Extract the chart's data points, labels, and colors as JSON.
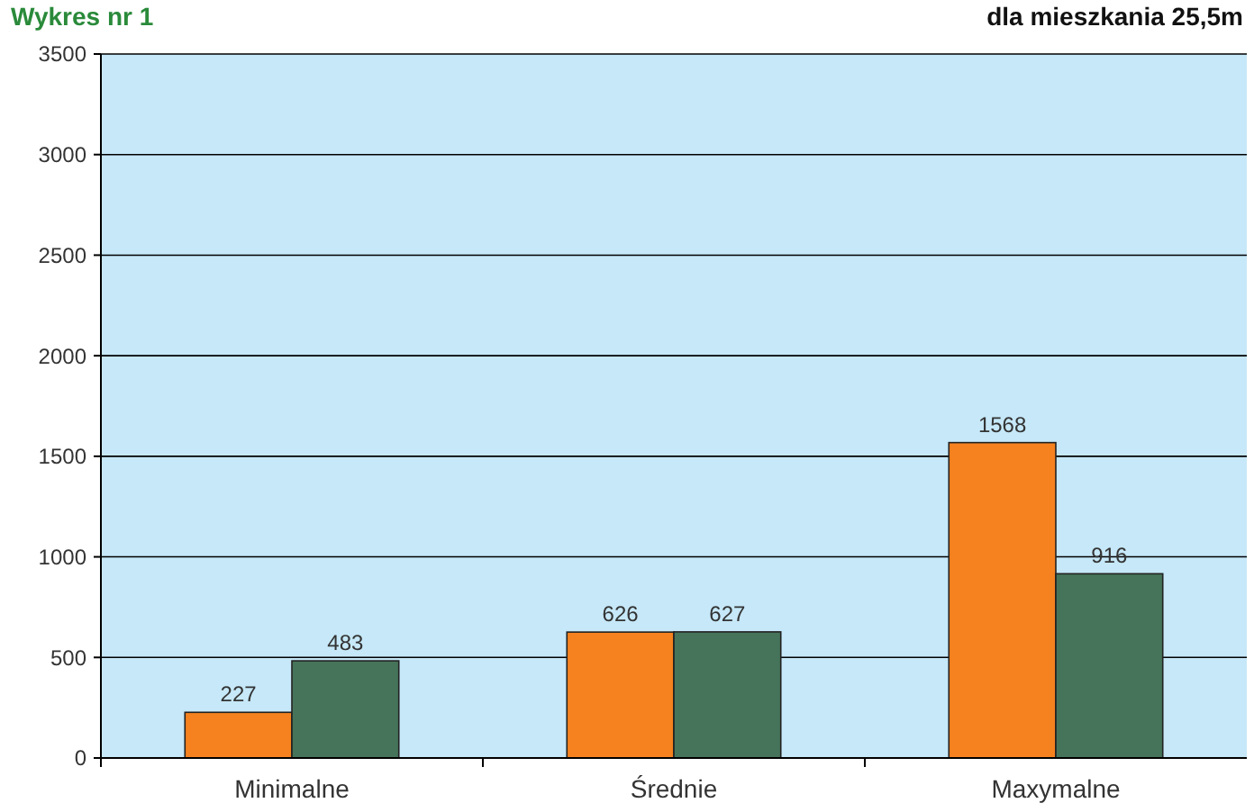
{
  "chart_data": {
    "type": "bar",
    "title": "Wykres nr 1",
    "subtitle": "dla mieszkania 25,5m",
    "categories": [
      "Minimalne",
      "Średnie",
      "Maxymalne"
    ],
    "series": [
      {
        "color": "#f5821f",
        "values": [
          227,
          626,
          1568
        ]
      },
      {
        "color": "#46745a",
        "values": [
          483,
          627,
          916
        ]
      }
    ],
    "ylim": [
      0,
      3500
    ],
    "yticks": [
      0,
      500,
      1000,
      1500,
      2000,
      2500,
      3000,
      3500
    ],
    "grid": "y",
    "data_labels": true
  }
}
